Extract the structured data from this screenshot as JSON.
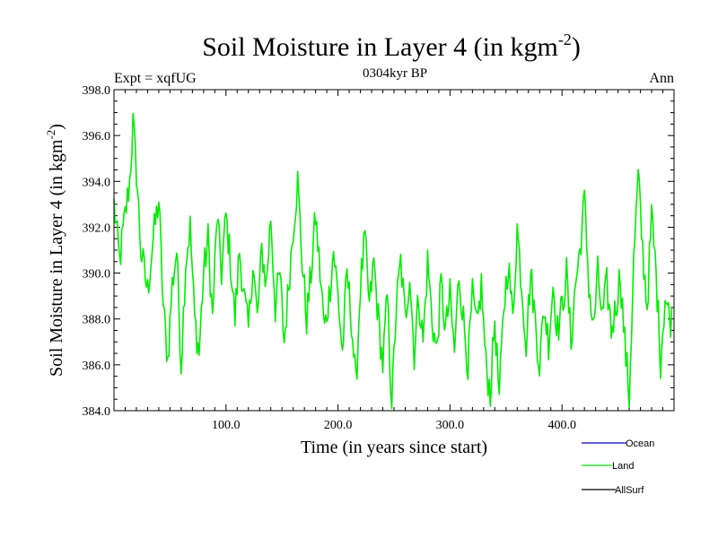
{
  "chart_data": {
    "type": "line",
    "title": "Soil Moisture in Layer 4 (in kgm",
    "title_sup": "-2",
    "title_end": ")",
    "subtitle_left": "Expt = xqfUG",
    "subtitle_center": "0304kyr BP",
    "subtitle_right": "Ann",
    "xlabel": "Time (in years since start)",
    "ylabel": "Soil Moisture in Layer 4 (in kgm",
    "ylabel_sup": "-2",
    "ylabel_end": ")",
    "xlim": [
      0,
      500
    ],
    "ylim": [
      384.0,
      398.0
    ],
    "xticks": [
      100,
      200,
      300,
      400
    ],
    "xtick_labels": [
      "100.0",
      "200.0",
      "300.0",
      "400.0"
    ],
    "yticks": [
      384,
      386,
      388,
      390,
      392,
      394,
      396,
      398
    ],
    "ytick_labels": [
      "384.0",
      "386.0",
      "388.0",
      "390.0",
      "392.0",
      "394.0",
      "396.0",
      "398.0"
    ],
    "legend_position": "bottom-right",
    "series": [
      {
        "name": "Ocean",
        "color": "#0000ff",
        "values": []
      },
      {
        "name": "Land",
        "color": "#00ee00",
        "key_points": [
          [
            0,
            393.0
          ],
          [
            5,
            390.5
          ],
          [
            10,
            392.5
          ],
          [
            14,
            394.0
          ],
          [
            17,
            396.5
          ],
          [
            20,
            394.5
          ],
          [
            24,
            391.0
          ],
          [
            30,
            389.2
          ],
          [
            35,
            391.5
          ],
          [
            40,
            393.2
          ],
          [
            44,
            388.5
          ],
          [
            48,
            386.2
          ],
          [
            52,
            389.5
          ],
          [
            56,
            391.0
          ],
          [
            60,
            386.0
          ],
          [
            64,
            390.5
          ],
          [
            68,
            392.0
          ],
          [
            72,
            388.0
          ],
          [
            76,
            386.5
          ],
          [
            80,
            390.0
          ],
          [
            84,
            391.5
          ],
          [
            88,
            388.0
          ],
          [
            92,
            392.5
          ],
          [
            96,
            390.0
          ],
          [
            100,
            392.5
          ],
          [
            104,
            390.5
          ],
          [
            108,
            388.0
          ],
          [
            112,
            391.0
          ],
          [
            116,
            389.0
          ],
          [
            120,
            387.5
          ],
          [
            124,
            390.5
          ],
          [
            128,
            388.0
          ],
          [
            132,
            391.0
          ],
          [
            136,
            389.5
          ],
          [
            140,
            392.5
          ],
          [
            144,
            388.5
          ],
          [
            148,
            390.0
          ],
          [
            152,
            387.0
          ],
          [
            156,
            389.5
          ],
          [
            160,
            392.0
          ],
          [
            164,
            394.0
          ],
          [
            168,
            390.5
          ],
          [
            172,
            388.0
          ],
          [
            176,
            390.0
          ],
          [
            180,
            392.5
          ],
          [
            184,
            390.0
          ],
          [
            188,
            387.5
          ],
          [
            192,
            389.0
          ],
          [
            196,
            391.0
          ],
          [
            200,
            389.0
          ],
          [
            204,
            386.5
          ],
          [
            208,
            390.0
          ],
          [
            212,
            388.0
          ],
          [
            216,
            385.0
          ],
          [
            220,
            389.5
          ],
          [
            224,
            391.5
          ],
          [
            228,
            388.5
          ],
          [
            232,
            390.5
          ],
          [
            236,
            388.0
          ],
          [
            240,
            386.0
          ],
          [
            244,
            389.0
          ],
          [
            248,
            384.2
          ],
          [
            252,
            388.5
          ],
          [
            256,
            390.5
          ],
          [
            260,
            388.0
          ],
          [
            264,
            390.0
          ],
          [
            268,
            386.5
          ],
          [
            272,
            389.0
          ],
          [
            276,
            387.0
          ],
          [
            280,
            390.5
          ],
          [
            284,
            388.0
          ],
          [
            288,
            386.5
          ],
          [
            292,
            389.5
          ],
          [
            296,
            387.5
          ],
          [
            300,
            389.0
          ],
          [
            304,
            386.5
          ],
          [
            308,
            390.0
          ],
          [
            312,
            388.0
          ],
          [
            316,
            386.0
          ],
          [
            320,
            389.0
          ],
          [
            324,
            387.5
          ],
          [
            328,
            389.5
          ],
          [
            332,
            386.0
          ],
          [
            336,
            384.8
          ],
          [
            340,
            388.0
          ],
          [
            344,
            384.5
          ],
          [
            348,
            388.5
          ],
          [
            352,
            390.5
          ],
          [
            356,
            388.0
          ],
          [
            360,
            392.0
          ],
          [
            364,
            389.5
          ],
          [
            368,
            387.0
          ],
          [
            372,
            390.0
          ],
          [
            376,
            388.0
          ],
          [
            380,
            386.0
          ],
          [
            384,
            388.5
          ],
          [
            388,
            387.0
          ],
          [
            392,
            389.5
          ],
          [
            396,
            387.5
          ],
          [
            400,
            388.5
          ],
          [
            404,
            390.0
          ],
          [
            408,
            387.0
          ],
          [
            412,
            389.5
          ],
          [
            416,
            391.0
          ],
          [
            420,
            393.2
          ],
          [
            424,
            389.5
          ],
          [
            428,
            387.5
          ],
          [
            432,
            390.0
          ],
          [
            436,
            388.0
          ],
          [
            440,
            389.5
          ],
          [
            444,
            387.5
          ],
          [
            448,
            388.5
          ],
          [
            452,
            390.0
          ],
          [
            456,
            387.0
          ],
          [
            460,
            384.6
          ],
          [
            464,
            390.5
          ],
          [
            468,
            394.2
          ],
          [
            472,
            391.0
          ],
          [
            476,
            388.5
          ],
          [
            480,
            392.5
          ],
          [
            484,
            390.0
          ],
          [
            488,
            386.2
          ],
          [
            492,
            389.0
          ],
          [
            496,
            388.0
          ]
        ]
      },
      {
        "name": "AllSurf",
        "color": "#000000",
        "values": []
      }
    ]
  }
}
